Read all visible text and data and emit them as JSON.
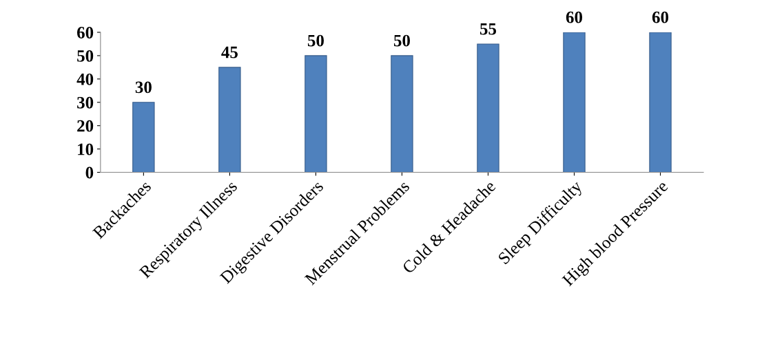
{
  "chart_data": {
    "type": "bar",
    "categories": [
      "Backaches",
      "Respiratory Illness",
      "Digestive Disorders",
      "Menstrual Problems",
      "Cold & Headache",
      "Sleep Difficulty",
      "High blood Pressure"
    ],
    "values": [
      30,
      45,
      50,
      50,
      55,
      60,
      60
    ],
    "color": "#4f81bd",
    "ylim": [
      0,
      60
    ],
    "yticks": [
      0,
      10,
      20,
      30,
      40,
      50,
      60
    ],
    "data_labels": true,
    "grid": false,
    "legend": false
  }
}
